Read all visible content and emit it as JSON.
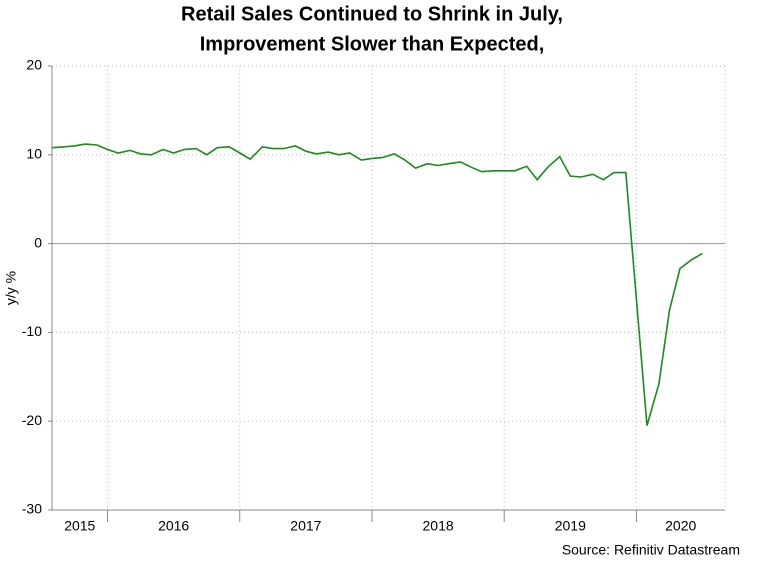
{
  "chart_data": {
    "type": "line",
    "title": [
      "Retail Sales Continued to Shrink in July,",
      "Improvement Slower than Expected,"
    ],
    "y_label": "y/y %",
    "source": "Source: Refinitiv Datastream",
    "xlim": [
      2015.58,
      2020.67
    ],
    "xticks": [
      2015,
      2016,
      2017,
      2018,
      2019,
      2020
    ],
    "ylim": [
      -30,
      20
    ],
    "yticks": [
      -30,
      -20,
      -10,
      0,
      10,
      20
    ],
    "grid": true,
    "x": [
      2015.58,
      2015.67,
      2015.75,
      2015.83,
      2015.92,
      2016.0,
      2016.08,
      2016.17,
      2016.25,
      2016.33,
      2016.42,
      2016.5,
      2016.58,
      2016.67,
      2016.75,
      2016.83,
      2016.92,
      2017.0,
      2017.08,
      2017.17,
      2017.25,
      2017.33,
      2017.42,
      2017.5,
      2017.58,
      2017.67,
      2017.75,
      2017.83,
      2017.92,
      2018.0,
      2018.08,
      2018.17,
      2018.25,
      2018.33,
      2018.42,
      2018.5,
      2018.58,
      2018.67,
      2018.75,
      2018.83,
      2018.92,
      2019.0,
      2019.08,
      2019.17,
      2019.25,
      2019.33,
      2019.42,
      2019.5,
      2019.58,
      2019.67,
      2019.75,
      2019.83,
      2019.92,
      2020.08,
      2020.17,
      2020.25,
      2020.33,
      2020.42,
      2020.5
    ],
    "series": [
      {
        "name": "Retail Sales",
        "color": "#1a8c1a",
        "values": [
          10.8,
          10.9,
          11.0,
          11.2,
          11.1,
          10.6,
          10.2,
          10.5,
          10.1,
          10.0,
          10.6,
          10.2,
          10.6,
          10.7,
          10.0,
          10.8,
          10.9,
          10.2,
          9.5,
          10.9,
          10.7,
          10.7,
          11.0,
          10.4,
          10.1,
          10.3,
          10.0,
          10.2,
          9.4,
          9.6,
          9.7,
          10.1,
          9.4,
          8.5,
          9.0,
          8.8,
          9.0,
          9.2,
          8.6,
          8.1,
          8.2,
          8.2,
          8.2,
          8.7,
          7.2,
          8.6,
          9.8,
          7.6,
          7.5,
          7.8,
          7.2,
          8.0,
          8.0,
          -20.5,
          -15.8,
          -7.5,
          -2.8,
          -1.8,
          -1.1
        ]
      }
    ]
  }
}
